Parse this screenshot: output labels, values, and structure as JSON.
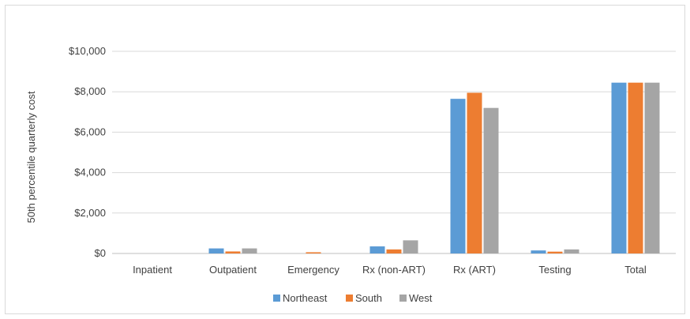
{
  "chart_data": {
    "type": "bar",
    "title": "",
    "xlabel": "",
    "ylabel": "50th percentile quarterly cost",
    "ylim": [
      0,
      10000
    ],
    "yticks": [
      0,
      2000,
      4000,
      6000,
      8000,
      10000
    ],
    "ytick_labels": [
      "$0",
      "$2,000",
      "$4,000",
      "$6,000",
      "$8,000",
      "$10,000"
    ],
    "grid": true,
    "legend_position": "bottom",
    "categories": [
      "Inpatient",
      "Outpatient",
      "Emergency",
      "Rx (non-ART)",
      "Rx (ART)",
      "Testing",
      "Total"
    ],
    "series": [
      {
        "name": "Northeast",
        "color": "#5b9bd5",
        "values": [
          0,
          250,
          0,
          350,
          7650,
          150,
          8450
        ]
      },
      {
        "name": "South",
        "color": "#ed7d31",
        "values": [
          0,
          100,
          60,
          200,
          7950,
          90,
          8450
        ]
      },
      {
        "name": "West",
        "color": "#a5a5a5",
        "values": [
          0,
          250,
          0,
          650,
          7200,
          200,
          8450
        ]
      }
    ]
  }
}
